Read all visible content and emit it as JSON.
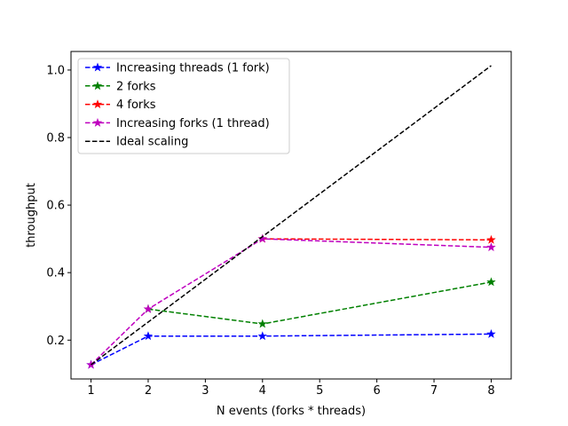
{
  "chart_data": {
    "type": "line",
    "xlabel": "N events (forks * threads)",
    "ylabel": "throughput",
    "xlim": [
      0.65,
      8.35
    ],
    "ylim": [
      0.085,
      1.055
    ],
    "xticks": [
      1,
      2,
      3,
      4,
      5,
      6,
      7,
      8
    ],
    "yticks": [
      0.2,
      0.4,
      0.6,
      0.8,
      1.0
    ],
    "ytick_labels": [
      "0.2",
      "0.4",
      "0.6",
      "0.8",
      "1.0"
    ],
    "grid": false,
    "legend_position": "upper-left",
    "series": [
      {
        "name": "Increasing threads (1 fork)",
        "color": "#0000ff",
        "style": "dashed",
        "marker": "star",
        "x": [
          1,
          2,
          4,
          8
        ],
        "y": [
          0.127,
          0.212,
          0.212,
          0.218
        ]
      },
      {
        "name": "2 forks",
        "color": "#008000",
        "style": "dashed",
        "marker": "star",
        "x": [
          2,
          4,
          8
        ],
        "y": [
          0.292,
          0.248,
          0.372
        ]
      },
      {
        "name": "4 forks",
        "color": "#ff0000",
        "style": "dashed",
        "marker": "star",
        "x": [
          4,
          8
        ],
        "y": [
          0.5,
          0.497
        ]
      },
      {
        "name": "Increasing forks (1 thread)",
        "color": "#bf00bf",
        "style": "dashed",
        "marker": "star",
        "x": [
          1,
          2,
          4,
          8
        ],
        "y": [
          0.127,
          0.292,
          0.5,
          0.475
        ]
      },
      {
        "name": "Ideal scaling",
        "color": "#000000",
        "style": "dashed",
        "marker": "none",
        "x": [
          1,
          8
        ],
        "y": [
          0.127,
          1.013
        ]
      }
    ]
  }
}
